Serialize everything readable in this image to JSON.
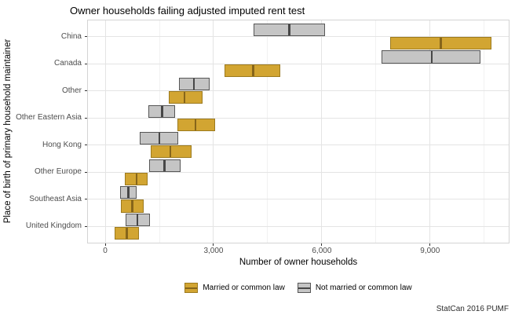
{
  "chart_data": {
    "type": "crossbar",
    "orientation": "horizontal",
    "title": "Owner households failing adjusted imputed rent test",
    "xlabel": "Number of owner households",
    "ylabel": "Place of birth of primary household maintainer",
    "caption": "StatCan 2016 PUMF",
    "categories": [
      "China",
      "Canada",
      "Other",
      "Other Eastern Asia",
      "Hong Kong",
      "Other Europe",
      "Southeast Asia",
      "United Kingdom"
    ],
    "xlim": [
      -480,
      11180
    ],
    "x_major_ticks": [
      {
        "value": 0,
        "label": "0"
      },
      {
        "value": 3000,
        "label": "3,000"
      },
      {
        "value": 6000,
        "label": "6,000"
      },
      {
        "value": 9000,
        "label": "9,000"
      }
    ],
    "x_minor_ticks": [
      1500,
      4500,
      7500,
      10500
    ],
    "grid": true,
    "legend_position": "bottom",
    "series": [
      {
        "name": "Married or common law",
        "fill": "#d2a532",
        "stroke": "#9c7a1e",
        "midline": "#86651a",
        "ranges": [
          [
            7900,
            9300,
            10700
          ],
          [
            3300,
            4100,
            4850
          ],
          [
            1750,
            2200,
            2700
          ],
          [
            2000,
            2500,
            3050
          ],
          [
            1250,
            1800,
            2400
          ],
          [
            550,
            870,
            1170
          ],
          [
            430,
            750,
            1070
          ],
          [
            250,
            600,
            940
          ]
        ]
      },
      {
        "name": "Not married or common law",
        "fill": "#c5c5c5",
        "stroke": "#565656",
        "midline": "#474747",
        "ranges": [
          [
            4100,
            5100,
            6100
          ],
          [
            7650,
            9050,
            10400
          ],
          [
            2050,
            2450,
            2900
          ],
          [
            1200,
            1580,
            1930
          ],
          [
            960,
            1500,
            2030
          ],
          [
            1210,
            1640,
            2080
          ],
          [
            420,
            640,
            860
          ],
          [
            560,
            890,
            1230
          ]
        ]
      }
    ],
    "dodge_order": [
      1,
      0
    ]
  }
}
